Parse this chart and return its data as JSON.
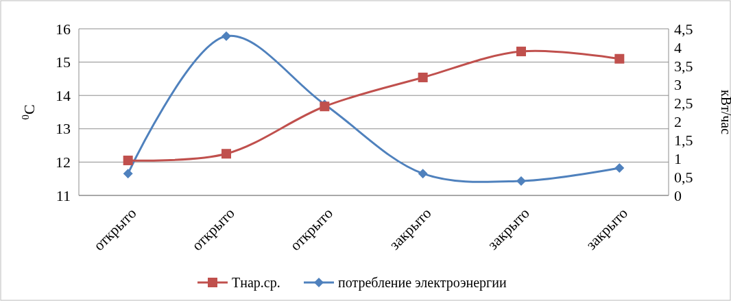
{
  "chart_data": {
    "type": "line",
    "categories": [
      "открыто",
      "открыто",
      "открыто",
      "закрыто",
      "закрыто",
      "закрыто"
    ],
    "ylabel": "$^{0}$С",
    "y2label": "кВт/час",
    "series": [
      {
        "name": "Тнар.ср.",
        "color": "#c0504d",
        "values": [
          12.05,
          12.25,
          13.67,
          14.54,
          15.32,
          15.1
        ],
        "marker": "square"
      },
      {
        "name": "потребление электроэнергии",
        "color": "#4f81bd",
        "values": [
          0.59,
          4.3,
          2.46,
          0.59,
          0.39,
          0.74
        ],
        "marker": "diamond",
        "axis": "y2"
      }
    ],
    "ylim": [
      11,
      16
    ],
    "yticks": [
      11,
      12,
      13,
      14,
      15,
      16
    ],
    "y2lim": [
      0,
      4.5
    ],
    "y2ticks": [
      0,
      {
        "value": 0.5,
        "label": "0,5"
      },
      1,
      {
        "value": 1.5,
        "label": "1,5"
      },
      2,
      {
        "value": 2.5,
        "label": "2,5"
      },
      3,
      {
        "value": 3.5,
        "label": "3,5"
      },
      4,
      {
        "value": 4.5,
        "label": "4,5"
      }
    ],
    "grid": "y",
    "legend": "bottom"
  }
}
